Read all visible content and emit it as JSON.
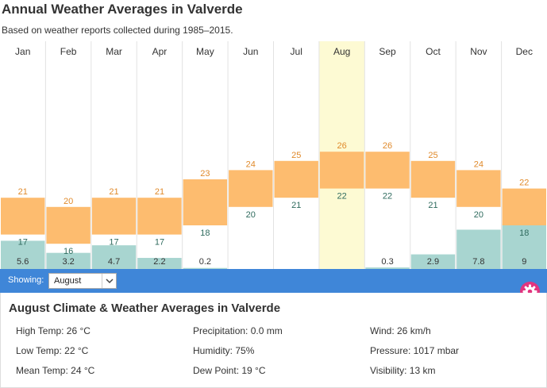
{
  "chart_data": {
    "type": "bar",
    "title": "Annual Weather Averages in Valverde",
    "subtitle": "Based on weather reports collected during 1985–2015.",
    "categories": [
      "Jan",
      "Feb",
      "Mar",
      "Apr",
      "May",
      "Jun",
      "Jul",
      "Aug",
      "Sep",
      "Oct",
      "Nov",
      "Dec"
    ],
    "series": [
      {
        "name": "High Temp",
        "unit": "°C",
        "values": [
          21,
          20,
          21,
          21,
          23,
          24,
          25,
          26,
          26,
          25,
          24,
          22
        ]
      },
      {
        "name": "Low Temp",
        "unit": "°C",
        "values": [
          17,
          16,
          17,
          17,
          18,
          20,
          21,
          22,
          22,
          21,
          20,
          18
        ]
      },
      {
        "name": "Precipitation",
        "values": [
          5.6,
          3.2,
          4.7,
          2.2,
          0.2,
          0,
          0,
          0,
          0.3,
          2.9,
          7.8,
          9
        ],
        "labels": [
          "5.6",
          "3.2",
          "4.7",
          "2.2",
          "0.2",
          "",
          "",
          "",
          "0.3",
          "2.9",
          "7.8",
          "9"
        ]
      }
    ],
    "temp_range": [
      10,
      30
    ],
    "precip_range": [
      0,
      30
    ],
    "highlight": "Aug"
  },
  "selector": {
    "label": "Showing:",
    "selected": "August"
  },
  "colors": {
    "accent": "#3f86d8",
    "band": "#fdbc6f",
    "precip": "#a8d5d0",
    "highlight": "#fdfad3",
    "high_text": "#e08a2b",
    "low_text": "#2f6b5e",
    "settings": "#e2357f"
  },
  "icons": {
    "settings": "gear-icon",
    "dropdown": "chevron-down-icon"
  },
  "details": {
    "title": "August Climate & Weather Averages in Valverde",
    "stats": [
      [
        "High Temp: 26 °C",
        "Low Temp: 22 °C",
        "Mean Temp: 24 °C"
      ],
      [
        "Precipitation: 0.0 mm",
        "Humidity: 75%",
        "Dew Point: 19 °C"
      ],
      [
        "Wind: 26 km/h",
        "Pressure: 1017 mbar",
        "Visibility: 13 km"
      ]
    ]
  }
}
